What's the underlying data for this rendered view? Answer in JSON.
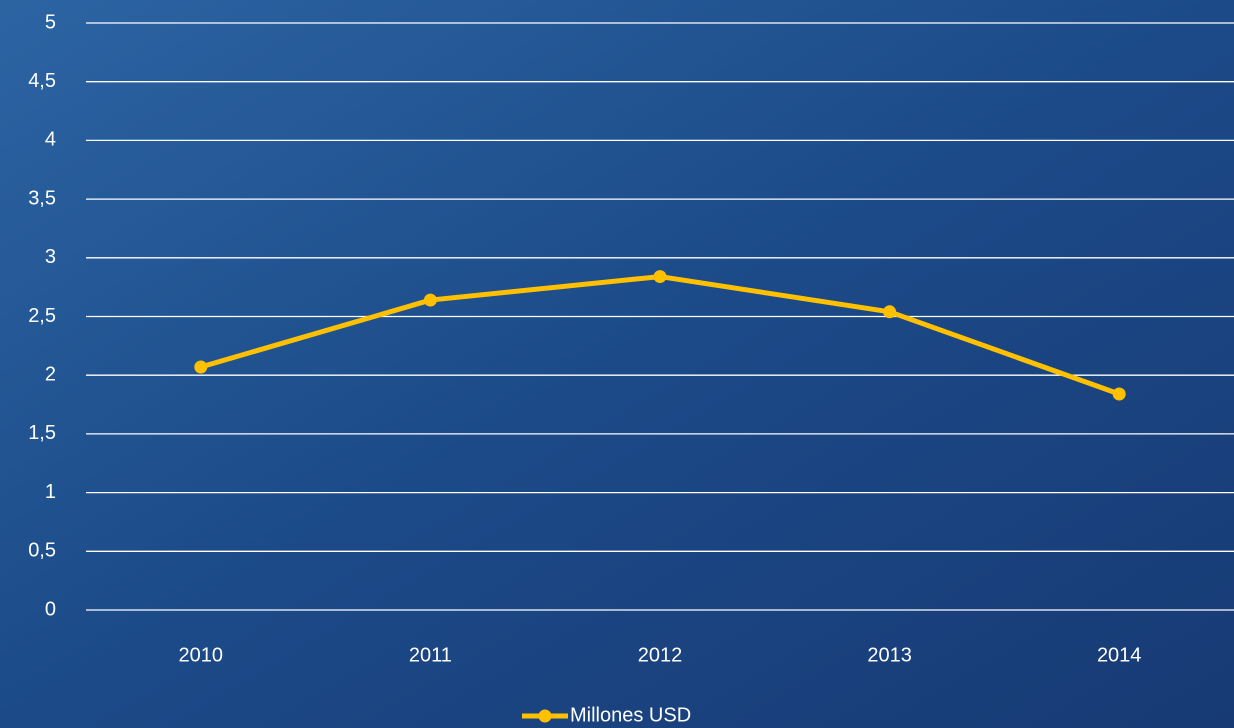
{
  "chart_data": {
    "type": "line",
    "categories": [
      "2010",
      "2011",
      "2012",
      "2013",
      "2014"
    ],
    "series": [
      {
        "name": "Millones USD",
        "color": "#ffc000",
        "values": [
          2.07,
          2.64,
          2.84,
          2.54,
          1.84
        ]
      }
    ],
    "ylim": [
      0,
      5
    ],
    "yticks": [
      0,
      {
        "value": 0.5,
        "label": "0,5"
      },
      1,
      {
        "value": 1.5,
        "label": "1,5"
      },
      2,
      {
        "value": 2.5,
        "label": "2,5"
      },
      3,
      {
        "value": 3.5,
        "label": "3,5"
      },
      4,
      {
        "value": 4.5,
        "label": "4,5"
      },
      5
    ],
    "grid": true,
    "legend": "bottom"
  }
}
